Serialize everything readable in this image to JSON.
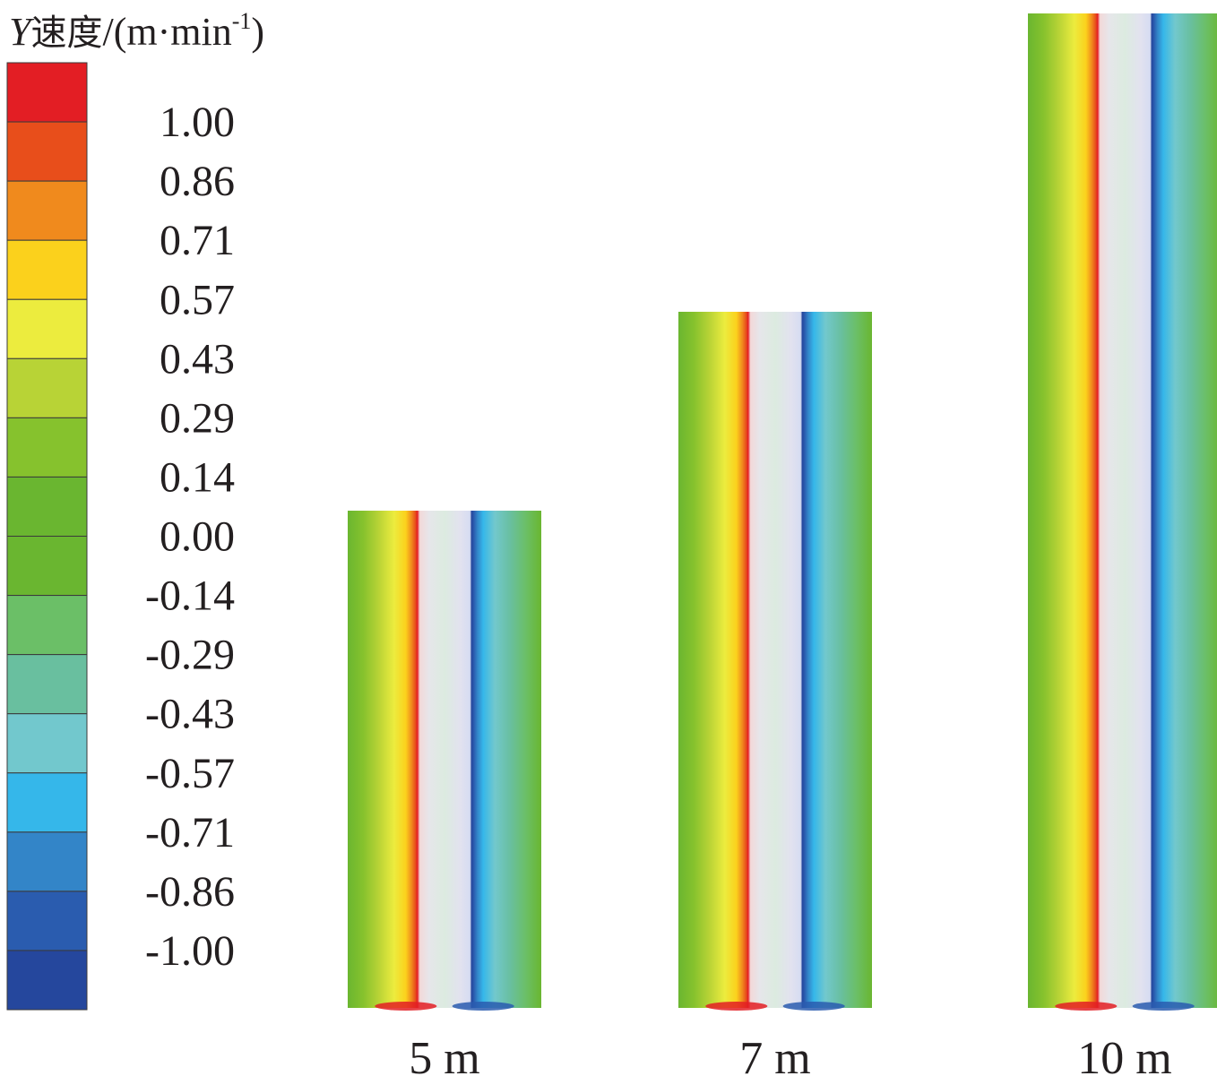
{
  "legend": {
    "title_var": "Y",
    "title_name": "速度",
    "title_unit_open": "/(m·min",
    "title_unit_exp": "-1",
    "title_unit_close": ")",
    "ticks": [
      "1.00",
      "0.86",
      "0.71",
      "0.57",
      "0.43",
      "0.29",
      "0.14",
      "0.00",
      "-0.14",
      "-0.29",
      "-0.43",
      "-0.57",
      "-0.71",
      "-0.86",
      "-1.00"
    ],
    "colors": [
      "#e31e24",
      "#e84e1b",
      "#f08a1d",
      "#fbd11c",
      "#ecec3e",
      "#b8d336",
      "#86c22d",
      "#6ab630",
      "#6ab630",
      "#6bbf67",
      "#69bf9f",
      "#72c8cd",
      "#35b7ea",
      "#3385c8",
      "#2a5caf",
      "#25479d"
    ]
  },
  "panels": [
    {
      "label": "5 m",
      "height_m": 5
    },
    {
      "label": "7 m",
      "height_m": 7
    },
    {
      "label": "10 m",
      "height_m": 10
    }
  ]
}
